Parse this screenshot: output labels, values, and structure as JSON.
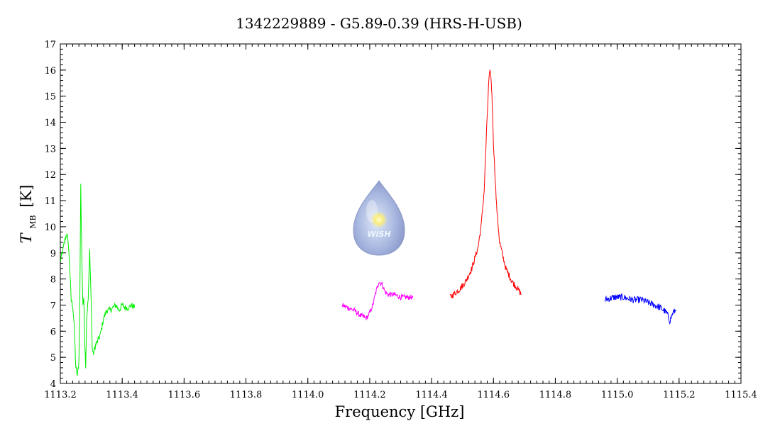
{
  "chart_data": {
    "type": "line",
    "title": "1342229889 - G5.89-0.39 (HRS-H-USB)",
    "xlabel": "Frequency [GHz]",
    "ylabel": {
      "main": "T",
      "sub": "MB",
      "unit": "[K]"
    },
    "xlim": [
      1113.2,
      1115.4
    ],
    "ylim": [
      4,
      17
    ],
    "xticks": [
      1113.2,
      1113.4,
      1113.6,
      1113.8,
      1114.0,
      1114.2,
      1114.4,
      1114.6,
      1114.8,
      1115.0,
      1115.2,
      1115.4
    ],
    "xtick_labels": [
      "1113.2",
      "1113.4",
      "1113.6",
      "1113.8",
      "1114.0",
      "1114.2",
      "1114.4",
      "1114.6",
      "1114.8",
      "1115.0",
      "1115.2",
      "1115.4"
    ],
    "yticks": [
      4,
      5,
      6,
      7,
      8,
      9,
      10,
      11,
      12,
      13,
      14,
      15,
      16,
      17
    ],
    "ytick_labels": [
      "4",
      "5",
      "6",
      "7",
      "8",
      "9",
      "10",
      "11",
      "12",
      "13",
      "14",
      "15",
      "16",
      "17"
    ],
    "grid": false,
    "series": [
      {
        "color": "#00ee00",
        "x": [
          1113.2,
          1113.205,
          1113.21,
          1113.215,
          1113.22,
          1113.225,
          1113.23,
          1113.235,
          1113.24,
          1113.245,
          1113.25,
          1113.255,
          1113.26,
          1113.263,
          1113.266,
          1113.27,
          1113.273,
          1113.276,
          1113.279,
          1113.282,
          1113.285,
          1113.29,
          1113.295,
          1113.3,
          1113.303,
          1113.306,
          1113.31,
          1113.315,
          1113.32,
          1113.33,
          1113.34,
          1113.35,
          1113.36,
          1113.37,
          1113.38,
          1113.39,
          1113.4,
          1113.41,
          1113.42,
          1113.43,
          1113.44
        ],
        "y": [
          8.7,
          8.9,
          9.2,
          9.5,
          9.7,
          9.5,
          8.5,
          7.2,
          7.0,
          6.2,
          4.6,
          4.3,
          4.8,
          7.2,
          11.6,
          8.5,
          6.9,
          7.4,
          5.5,
          4.7,
          6.5,
          7.2,
          9.1,
          7.0,
          5.4,
          5.1,
          5.3,
          5.5,
          5.6,
          5.9,
          6.5,
          6.8,
          6.8,
          6.9,
          7.0,
          6.8,
          7.0,
          6.9,
          6.9,
          7.0,
          6.9
        ],
        "noise": 0.12
      },
      {
        "color": "#ff00ff",
        "x": [
          1114.11,
          1114.13,
          1114.15,
          1114.17,
          1114.19,
          1114.2,
          1114.21,
          1114.22,
          1114.23,
          1114.24,
          1114.25,
          1114.26,
          1114.28,
          1114.3,
          1114.32,
          1114.34
        ],
        "y": [
          7.0,
          6.9,
          6.8,
          6.6,
          6.5,
          6.7,
          7.0,
          7.5,
          7.9,
          7.8,
          7.5,
          7.4,
          7.4,
          7.3,
          7.3,
          7.3
        ],
        "noise": 0.1
      },
      {
        "color": "#ff0000",
        "x": [
          1114.46,
          1114.49,
          1114.51,
          1114.53,
          1114.55,
          1114.56,
          1114.57,
          1114.58,
          1114.585,
          1114.59,
          1114.595,
          1114.6,
          1114.61,
          1114.62,
          1114.64,
          1114.66,
          1114.68,
          1114.69
        ],
        "y": [
          7.3,
          7.6,
          7.9,
          8.4,
          9.2,
          10.0,
          11.4,
          14.3,
          15.6,
          16.0,
          15.1,
          13.2,
          10.8,
          9.4,
          8.4,
          7.9,
          7.6,
          7.4
        ],
        "noise": 0.12
      },
      {
        "color": "#0000ff",
        "x": [
          1114.96,
          1114.99,
          1115.02,
          1115.05,
          1115.08,
          1115.1,
          1115.12,
          1115.14,
          1115.16,
          1115.17,
          1115.18,
          1115.19
        ],
        "y": [
          7.2,
          7.3,
          7.3,
          7.2,
          7.2,
          7.1,
          7.0,
          6.9,
          6.7,
          6.4,
          6.7,
          6.8
        ],
        "noise": 0.13
      }
    ]
  },
  "logo": {
    "text": "WISH"
  }
}
